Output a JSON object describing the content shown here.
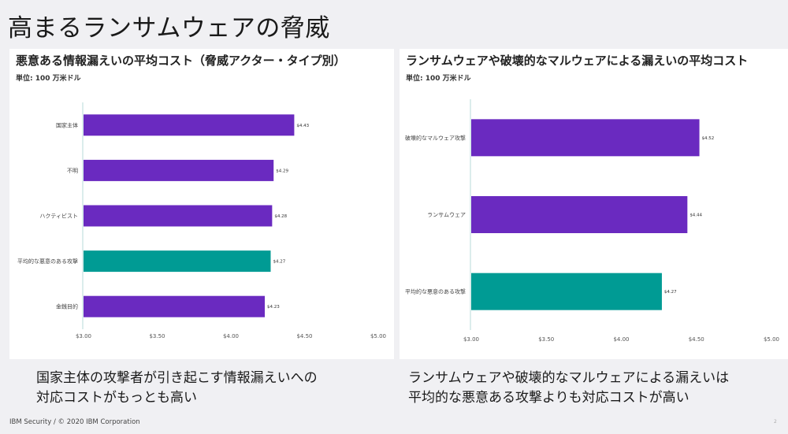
{
  "slide": {
    "title": "高まるランサムウェアの脅威",
    "footer": "IBM Security / © 2020 IBM Corporation",
    "page_number": "2"
  },
  "captions": {
    "left": [
      "国家主体の攻撃者が引き起こす情報漏えいへの",
      "対応コストがもっとも高い"
    ],
    "right": [
      "ランサムウェアや破壊的なマルウェアによる漏えいは",
      "平均的な悪意ある攻撃よりも対応コストが高い"
    ]
  },
  "colors": {
    "purple": "#6a2ac0",
    "teal": "#009b94",
    "axis": "#cfe7e5"
  },
  "chart_data": [
    {
      "type": "bar",
      "orientation": "horizontal",
      "title": "悪意ある情報漏えいの平均コスト（脅威アクター・タイプ別）",
      "unit": "単位: 100 万米ドル",
      "categories": [
        "国家主体",
        "不明",
        "ハクティビスト",
        "平均的な悪意のある攻撃",
        "金銭目的"
      ],
      "values": [
        4.43,
        4.29,
        4.28,
        4.27,
        4.23
      ],
      "value_labels": [
        "$4.43",
        "$4.29",
        "$4.28",
        "$4.27",
        "$4.23"
      ],
      "bar_colors": [
        "purple",
        "purple",
        "purple",
        "teal",
        "purple"
      ],
      "xlim": [
        3.0,
        5.0
      ],
      "xticks": [
        3.0,
        3.5,
        4.0,
        4.5,
        5.0
      ],
      "xtick_labels": [
        "$3.00",
        "$3.50",
        "$4.00",
        "$4.50",
        "$5.00"
      ]
    },
    {
      "type": "bar",
      "orientation": "horizontal",
      "title": "ランサムウェアや破壊的なマルウェアによる漏えいの平均コスト",
      "unit": "単位: 100 万米ドル",
      "categories": [
        "破壊的なマルウェア攻撃",
        "ランサムウェア",
        "平均的な悪意のある攻撃"
      ],
      "values": [
        4.52,
        4.44,
        4.27
      ],
      "value_labels": [
        "$4.52",
        "$4.44",
        "$4.27"
      ],
      "bar_colors": [
        "purple",
        "purple",
        "teal"
      ],
      "xlim": [
        3.0,
        5.0
      ],
      "xticks": [
        3.0,
        3.5,
        4.0,
        4.5,
        5.0
      ],
      "xtick_labels": [
        "$3.00",
        "$3.50",
        "$4.00",
        "$4.50",
        "$5.00"
      ]
    }
  ]
}
